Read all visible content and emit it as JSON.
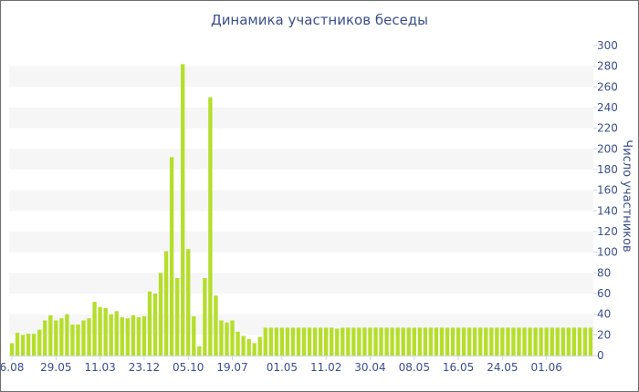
{
  "chart_data": {
    "type": "bar",
    "title": "Динамика участников беседы",
    "ylabel": "Число участников",
    "xlabel": "",
    "ylim": [
      0,
      300
    ],
    "yticks": [
      0,
      20,
      40,
      60,
      80,
      100,
      120,
      140,
      160,
      180,
      200,
      220,
      240,
      260,
      280,
      300
    ],
    "ytick_labels": [
      "0",
      "20",
      "40",
      "60",
      "80",
      "100",
      "120",
      "140",
      "160",
      "180",
      "200",
      "220",
      "240",
      "260",
      "280",
      "300"
    ],
    "y_axis_position": "right",
    "grid": "alternating-bands",
    "xtick_labels": [
      {
        "label": "6.08",
        "bar": 0
      },
      {
        "label": "29.05",
        "bar": 8
      },
      {
        "label": "11.03",
        "bar": 16
      },
      {
        "label": "23.12",
        "bar": 24
      },
      {
        "label": "05.10",
        "bar": 32
      },
      {
        "label": "19.07",
        "bar": 40
      },
      {
        "label": "01.05",
        "bar": 49
      },
      {
        "label": "11.02",
        "bar": 57
      },
      {
        "label": "30.04",
        "bar": 65
      },
      {
        "label": "08.05",
        "bar": 73
      },
      {
        "label": "16.05",
        "bar": 81
      },
      {
        "label": "24.05",
        "bar": 89
      },
      {
        "label": "01.06",
        "bar": 97
      }
    ],
    "bar_color": "#b5de2c",
    "values": [
      12,
      22,
      20,
      21,
      21,
      25,
      34,
      39,
      34,
      36,
      40,
      30,
      30,
      34,
      36,
      52,
      47,
      46,
      40,
      43,
      37,
      36,
      39,
      37,
      38,
      62,
      60,
      80,
      101,
      192,
      75,
      282,
      103,
      38,
      9,
      75,
      250,
      58,
      34,
      32,
      34,
      23,
      19,
      16,
      12,
      18,
      27,
      27,
      27,
      27,
      27,
      27,
      27,
      27,
      27,
      27,
      27,
      27,
      27,
      26,
      27,
      27,
      27,
      27,
      27,
      27,
      27,
      27,
      27,
      27,
      27,
      27,
      27,
      27,
      27,
      27,
      27,
      27,
      27,
      27,
      27,
      27,
      27,
      27,
      27,
      27,
      27,
      27,
      27,
      27,
      27,
      27,
      27,
      27,
      27,
      27,
      27,
      27,
      27,
      27,
      27,
      27,
      27,
      27,
      27,
      27
    ]
  }
}
